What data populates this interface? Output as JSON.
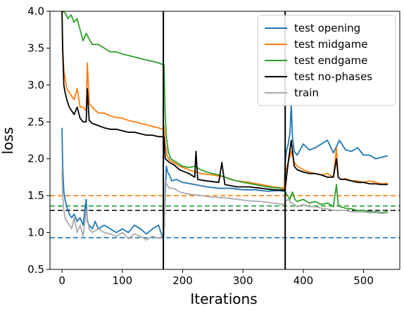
{
  "chart_data": {
    "type": "line",
    "title": "",
    "xlabel": "Iterations",
    "ylabel": "loss",
    "xlim": [
      -20,
      560
    ],
    "ylim": [
      0.5,
      4.0
    ],
    "x_ticks": [
      0,
      100,
      200,
      300,
      400,
      500
    ],
    "y_ticks": [
      0.5,
      1.0,
      1.5,
      2.0,
      2.5,
      3.0,
      3.5,
      4.0
    ],
    "x_tick_labels": [
      "0",
      "100",
      "200",
      "300",
      "400",
      "500"
    ],
    "y_tick_labels": [
      "0.5",
      "1.0",
      "1.5",
      "2.0",
      "2.5",
      "3.0",
      "3.5",
      "4.0"
    ],
    "grid": false,
    "legend_position": "top-right",
    "vertical_lines": [
      168,
      370
    ],
    "horizontal_dashed_lines": [
      {
        "y": 0.93,
        "color": "#1f77b4"
      },
      {
        "y": 1.5,
        "color": "#ff7f0e"
      },
      {
        "y": 1.36,
        "color": "#2ca02c"
      },
      {
        "y": 1.3,
        "color": "#000000"
      }
    ],
    "series": [
      {
        "name": "test opening",
        "color": "#1f77b4",
        "x": [
          0,
          1,
          3,
          5,
          8,
          12,
          16,
          20,
          25,
          30,
          35,
          40,
          42,
          45,
          50,
          55,
          60,
          70,
          80,
          90,
          100,
          110,
          120,
          130,
          140,
          150,
          160,
          166,
          169,
          171,
          173,
          175,
          178,
          182,
          190,
          200,
          220,
          240,
          260,
          280,
          300,
          320,
          340,
          360,
          368,
          370,
          372,
          375,
          378,
          380,
          382,
          385,
          390,
          400,
          410,
          420,
          430,
          440,
          450,
          460,
          470,
          480,
          490,
          500,
          510,
          520,
          530,
          540
        ],
        "y": [
          2.42,
          1.9,
          1.55,
          1.45,
          1.35,
          1.25,
          1.2,
          1.25,
          1.15,
          1.2,
          1.1,
          1.45,
          1.15,
          1.1,
          1.05,
          1.15,
          1.05,
          1.1,
          1.05,
          1.0,
          1.05,
          1.0,
          1.1,
          1.05,
          0.98,
          1.05,
          1.1,
          0.95,
          0.98,
          1.5,
          1.9,
          1.82,
          1.78,
          1.7,
          1.72,
          1.68,
          1.65,
          1.62,
          1.6,
          1.6,
          1.58,
          1.58,
          1.56,
          1.57,
          1.56,
          1.95,
          2.1,
          2.2,
          2.35,
          2.75,
          2.3,
          2.1,
          2.05,
          2.2,
          2.12,
          2.15,
          2.2,
          2.25,
          2.08,
          2.25,
          2.12,
          2.1,
          2.15,
          2.05,
          2.05,
          2.0,
          2.02,
          2.04
        ]
      },
      {
        "name": "test midgame",
        "color": "#ff7f0e",
        "x": [
          0,
          1,
          3,
          5,
          8,
          12,
          16,
          20,
          25,
          30,
          35,
          40,
          42,
          45,
          50,
          60,
          70,
          80,
          90,
          100,
          110,
          120,
          130,
          140,
          150,
          160,
          166,
          169,
          171,
          174,
          178,
          185,
          195,
          210,
          230,
          250,
          270,
          290,
          310,
          330,
          350,
          368,
          370,
          375,
          380,
          385,
          390,
          400,
          410,
          420,
          430,
          440,
          450,
          455,
          458,
          462,
          470,
          480,
          490,
          500,
          510,
          520,
          530,
          540
        ],
        "y": [
          4.0,
          3.5,
          3.2,
          3.1,
          2.95,
          2.9,
          2.85,
          2.8,
          2.95,
          2.7,
          2.7,
          2.65,
          3.3,
          2.75,
          2.7,
          2.62,
          2.62,
          2.58,
          2.56,
          2.55,
          2.52,
          2.5,
          2.48,
          2.46,
          2.44,
          2.42,
          2.4,
          2.45,
          2.2,
          2.05,
          1.98,
          1.95,
          1.9,
          1.85,
          1.8,
          1.78,
          1.75,
          1.7,
          1.68,
          1.65,
          1.62,
          1.6,
          1.8,
          1.95,
          2.1,
          1.95,
          1.9,
          1.85,
          1.82,
          1.8,
          1.78,
          1.8,
          1.75,
          2.15,
          1.75,
          1.72,
          1.73,
          1.7,
          1.7,
          1.68,
          1.7,
          1.68,
          1.66,
          1.67
        ]
      },
      {
        "name": "test endgame",
        "color": "#2ca02c",
        "x": [
          0,
          5,
          10,
          15,
          20,
          25,
          30,
          35,
          40,
          50,
          60,
          70,
          80,
          90,
          100,
          110,
          120,
          130,
          140,
          150,
          160,
          166,
          169,
          171,
          173,
          176,
          180,
          190,
          200,
          210,
          220,
          230,
          240,
          250,
          260,
          270,
          280,
          290,
          300,
          320,
          340,
          360,
          368,
          370,
          374,
          378,
          382,
          386,
          390,
          400,
          410,
          420,
          430,
          440,
          450,
          455,
          458,
          462,
          470,
          480,
          490,
          500,
          510,
          520,
          530,
          540
        ],
        "y": [
          4.0,
          3.98,
          3.9,
          3.95,
          3.85,
          3.9,
          3.75,
          3.6,
          3.7,
          3.55,
          3.55,
          3.5,
          3.45,
          3.45,
          3.42,
          3.4,
          3.38,
          3.36,
          3.34,
          3.32,
          3.3,
          3.28,
          3.28,
          2.6,
          2.3,
          2.1,
          2.0,
          1.95,
          1.9,
          1.88,
          1.9,
          1.85,
          1.82,
          1.8,
          1.78,
          1.75,
          1.72,
          1.7,
          1.68,
          1.65,
          1.62,
          1.6,
          1.58,
          1.55,
          1.5,
          1.45,
          1.55,
          1.45,
          1.42,
          1.45,
          1.4,
          1.42,
          1.38,
          1.4,
          1.35,
          1.65,
          1.38,
          1.35,
          1.33,
          1.32,
          1.3,
          1.3,
          1.28,
          1.28,
          1.27,
          1.28
        ]
      },
      {
        "name": "test no-phases",
        "color": "#000000",
        "x": [
          0,
          1,
          3,
          5,
          8,
          12,
          16,
          20,
          25,
          30,
          35,
          40,
          42,
          45,
          50,
          60,
          70,
          80,
          90,
          100,
          110,
          120,
          130,
          140,
          150,
          160,
          166,
          169,
          171,
          174,
          178,
          185,
          195,
          210,
          220,
          222,
          225,
          240,
          260,
          265,
          270,
          290,
          310,
          330,
          350,
          368,
          370,
          375,
          380,
          385,
          390,
          400,
          410,
          420,
          430,
          440,
          450,
          455,
          458,
          462,
          470,
          480,
          490,
          500,
          510,
          520,
          530,
          540
        ],
        "y": [
          4.0,
          3.5,
          3.0,
          2.9,
          2.8,
          2.7,
          2.65,
          2.6,
          2.7,
          2.55,
          2.5,
          2.5,
          2.95,
          2.52,
          2.48,
          2.45,
          2.42,
          2.4,
          2.4,
          2.38,
          2.36,
          2.36,
          2.34,
          2.32,
          2.32,
          2.3,
          2.3,
          2.3,
          2.0,
          1.98,
          1.95,
          1.92,
          1.85,
          1.8,
          1.75,
          2.1,
          1.72,
          1.7,
          1.68,
          1.95,
          1.65,
          1.62,
          1.62,
          1.6,
          1.58,
          1.57,
          1.6,
          1.95,
          2.25,
          1.9,
          1.85,
          1.82,
          1.8,
          1.8,
          1.78,
          1.75,
          1.75,
          2.0,
          1.75,
          1.72,
          1.72,
          1.7,
          1.68,
          1.68,
          1.66,
          1.66,
          1.65,
          1.65
        ]
      },
      {
        "name": "train",
        "color": "#aaaaaa",
        "x": [
          0,
          1,
          3,
          5,
          8,
          12,
          16,
          20,
          25,
          30,
          35,
          40,
          45,
          50,
          60,
          70,
          80,
          90,
          100,
          110,
          120,
          130,
          140,
          150,
          160,
          166,
          169,
          171,
          174,
          178,
          185,
          195,
          210,
          230,
          250,
          270,
          290,
          310,
          330,
          350,
          368,
          370,
          375,
          380,
          385,
          390,
          400,
          410,
          420,
          430,
          440,
          450,
          460,
          470,
          480,
          490,
          500,
          510,
          520,
          530,
          540
        ],
        "y": [
          1.85,
          1.5,
          1.3,
          1.2,
          1.15,
          1.1,
          1.05,
          1.2,
          1.0,
          1.1,
          0.95,
          1.3,
          1.05,
          1.0,
          1.05,
          1.0,
          0.98,
          0.95,
          1.0,
          0.92,
          0.98,
          0.95,
          0.9,
          0.95,
          0.92,
          0.95,
          0.95,
          1.7,
          1.65,
          1.6,
          1.6,
          1.55,
          1.52,
          1.5,
          1.48,
          1.47,
          1.45,
          1.43,
          1.42,
          1.4,
          1.38,
          1.42,
          1.45,
          1.4,
          1.38,
          1.35,
          1.38,
          1.35,
          1.35,
          1.33,
          1.32,
          1.3,
          1.3,
          1.3,
          1.28,
          1.28,
          1.28,
          1.27,
          1.27,
          1.26,
          1.27
        ]
      }
    ]
  }
}
